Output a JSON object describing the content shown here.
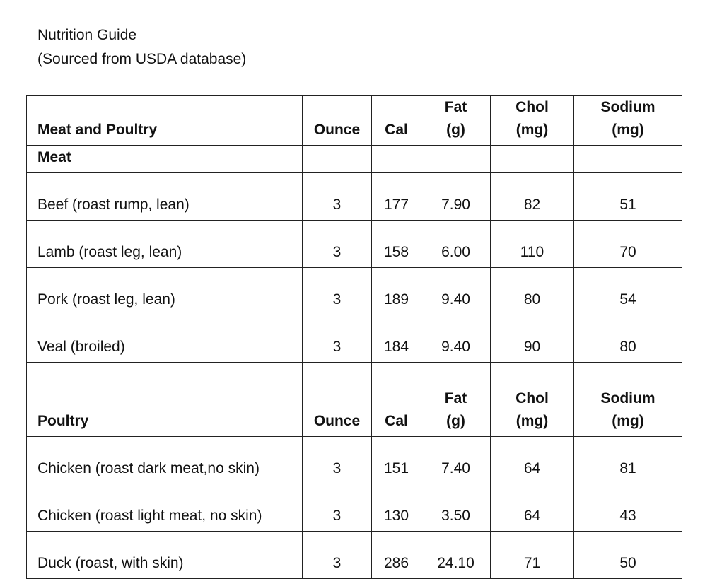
{
  "document": {
    "title": "Nutrition Guide",
    "subtitle": "(Sourced from USDA database)"
  },
  "table": {
    "header": {
      "name": "Meat and Poultry",
      "ounce": "Ounce",
      "cal": "Cal",
      "fat": "Fat (g)",
      "chol": "Chol (mg)",
      "sodium": "Sodium (mg)"
    },
    "meat_label": "Meat",
    "meat_rows": [
      {
        "name": "Beef (roast rump, lean)",
        "ounce": "3",
        "cal": "177",
        "fat": "7.90",
        "chol": "82",
        "sodium": "51"
      },
      {
        "name": "Lamb (roast leg, lean)",
        "ounce": "3",
        "cal": "158",
        "fat": "6.00",
        "chol": "110",
        "sodium": "70"
      },
      {
        "name": "Pork (roast leg, lean)",
        "ounce": "3",
        "cal": "189",
        "fat": "9.40",
        "chol": "80",
        "sodium": "54"
      },
      {
        "name": "Veal (broiled)",
        "ounce": "3",
        "cal": "184",
        "fat": "9.40",
        "chol": "90",
        "sodium": "80"
      }
    ],
    "poultry_header": {
      "name": "Poultry",
      "ounce": "Ounce",
      "cal": "Cal",
      "fat": "Fat (g)",
      "chol": "Chol (mg)",
      "sodium": "Sodium (mg)"
    },
    "poultry_rows": [
      {
        "name": "Chicken (roast dark meat,no skin)",
        "ounce": "3",
        "cal": "151",
        "fat": "7.40",
        "chol": "64",
        "sodium": "81"
      },
      {
        "name": "Chicken (roast light meat, no skin)",
        "ounce": "3",
        "cal": "130",
        "fat": "3.50",
        "chol": "64",
        "sodium": "43"
      },
      {
        "name": "Duck (roast, with skin)",
        "ounce": "3",
        "cal": "286",
        "fat": "24.10",
        "chol": "71",
        "sodium": "50"
      }
    ]
  }
}
